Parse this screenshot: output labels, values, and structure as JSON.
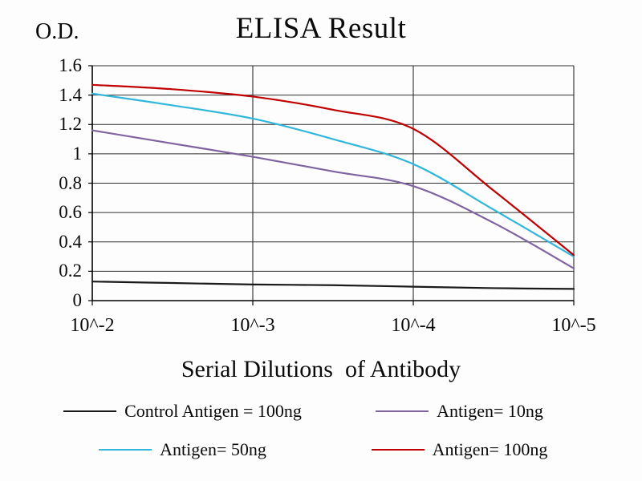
{
  "chart_data": {
    "type": "line",
    "title": "ELISA Result",
    "ylabel": "O.D.",
    "xlabel": "Serial Dilutions  of Antibody",
    "x_ticks": [
      "10^-2",
      "10^-3",
      "10^-4",
      "10^-5"
    ],
    "y_ticks": [
      0,
      0.2,
      0.4,
      0.6,
      0.8,
      1,
      1.2,
      1.4,
      1.6
    ],
    "ylim": [
      0,
      1.6
    ],
    "grid": true,
    "legend_position": "bottom",
    "series": [
      {
        "name": "Control Antigen = 100ng",
        "color": "#1a1a1a",
        "x": [
          0,
          0.5,
          1,
          1.5,
          2,
          2.5,
          3
        ],
        "values": [
          0.13,
          0.12,
          0.11,
          0.105,
          0.095,
          0.085,
          0.08
        ]
      },
      {
        "name": "Antigen= 10ng",
        "color": "#8064a2",
        "x": [
          0,
          0.5,
          1,
          1.5,
          2,
          2.5,
          3
        ],
        "values": [
          1.16,
          1.07,
          0.98,
          0.88,
          0.78,
          0.53,
          0.22
        ]
      },
      {
        "name": "Antigen= 50ng",
        "color": "#31b6dc",
        "x": [
          0,
          0.5,
          1,
          1.5,
          2,
          2.5,
          3
        ],
        "values": [
          1.41,
          1.33,
          1.24,
          1.1,
          0.93,
          0.62,
          0.3
        ]
      },
      {
        "name": "Antigen= 100ng",
        "color": "#c00000",
        "x": [
          0,
          0.5,
          1,
          1.5,
          2,
          2.5,
          3
        ],
        "values": [
          1.47,
          1.44,
          1.39,
          1.3,
          1.17,
          0.75,
          0.31
        ]
      }
    ]
  }
}
